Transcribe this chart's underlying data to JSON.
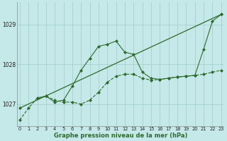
{
  "xlabel": "Graphe pression niveau de la mer (hPa)",
  "bg_color": "#c5e8e8",
  "grid_color": "#a0cccc",
  "line_color": "#2d6a2d",
  "x_ticks": [
    0,
    1,
    2,
    3,
    4,
    5,
    6,
    7,
    8,
    9,
    10,
    11,
    12,
    13,
    14,
    15,
    16,
    17,
    18,
    19,
    20,
    21,
    22,
    23
  ],
  "y_ticks": [
    1027,
    1028,
    1029
  ],
  "ylim": [
    1026.45,
    1029.55
  ],
  "xlim": [
    -0.3,
    23.3
  ],
  "series": [
    {
      "x": [
        0,
        1,
        2,
        3,
        4,
        5,
        6,
        7,
        8,
        9,
        10,
        11,
        12,
        13,
        14,
        15,
        16,
        17,
        18,
        19,
        20,
        21,
        22,
        23
      ],
      "y": [
        1026.6,
        1026.9,
        1027.15,
        1027.2,
        1027.1,
        1027.05,
        1027.05,
        1027.0,
        1027.1,
        1027.3,
        1027.55,
        1027.7,
        1027.75,
        1027.75,
        1027.65,
        1027.6,
        1027.62,
        1027.65,
        1027.68,
        1027.7,
        1027.72,
        1027.75,
        1027.8,
        1027.85
      ],
      "marker": "D",
      "markersize": 2,
      "linestyle": "--",
      "linewidth": 0.8
    },
    {
      "x": [
        2,
        3,
        4,
        5,
        6,
        7,
        8,
        9,
        10,
        11,
        12,
        13,
        14,
        15,
        16,
        17,
        18,
        19,
        20,
        21,
        22,
        23
      ],
      "y": [
        1027.15,
        1027.2,
        1027.05,
        1027.1,
        1027.45,
        1027.85,
        1028.15,
        1028.45,
        1028.5,
        1028.58,
        1028.3,
        1028.25,
        1027.8,
        1027.65,
        1027.62,
        1027.65,
        1027.68,
        1027.7,
        1027.72,
        1028.38,
        1029.08,
        1029.25
      ],
      "marker": "D",
      "markersize": 2,
      "linestyle": "-",
      "linewidth": 0.8
    },
    {
      "x": [
        0,
        23
      ],
      "y": [
        1026.9,
        1029.25
      ],
      "marker": "D",
      "markersize": 2,
      "linestyle": "-",
      "linewidth": 0.9
    }
  ]
}
